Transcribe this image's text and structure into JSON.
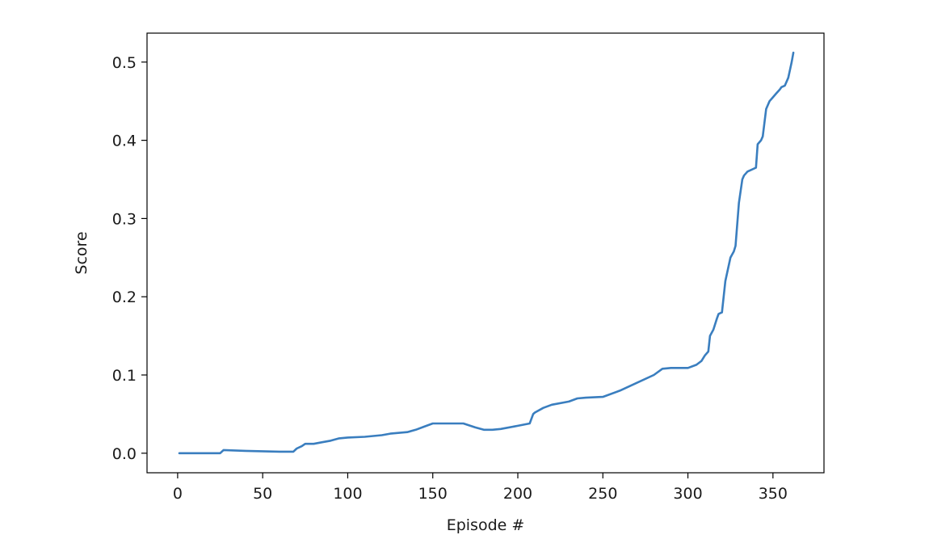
{
  "chart_data": {
    "type": "line",
    "title": "",
    "xlabel": "Episode #",
    "ylabel": "Score",
    "xlim": [
      -18,
      380
    ],
    "ylim": [
      -0.025,
      0.537
    ],
    "x_ticks": [
      0,
      50,
      100,
      150,
      200,
      250,
      300,
      350
    ],
    "x_tick_labels": [
      "0",
      "50",
      "100",
      "150",
      "200",
      "250",
      "300",
      "350"
    ],
    "y_ticks": [
      0.0,
      0.1,
      0.2,
      0.3,
      0.4,
      0.5
    ],
    "y_tick_labels": [
      "0.0",
      "0.1",
      "0.2",
      "0.3",
      "0.4",
      "0.5"
    ],
    "grid": false,
    "line_color": "#3a7ebf",
    "series": [
      {
        "x": [
          1,
          25,
          27,
          40,
          60,
          68,
          70,
          73,
          75,
          80,
          85,
          90,
          95,
          100,
          110,
          120,
          125,
          135,
          140,
          145,
          150,
          160,
          168,
          175,
          180,
          185,
          190,
          200,
          207,
          209,
          210,
          215,
          220,
          230,
          235,
          240,
          250,
          260,
          270,
          280,
          285,
          290,
          300,
          305,
          308,
          310,
          312,
          313,
          315,
          317,
          318,
          320,
          322,
          325,
          327,
          328,
          330,
          332,
          333,
          335,
          340,
          341,
          343,
          344,
          346,
          348,
          350,
          352,
          354,
          355,
          357,
          359,
          360,
          361,
          362
        ],
        "y": [
          0.0,
          0.0,
          0.004,
          0.003,
          0.002,
          0.002,
          0.006,
          0.009,
          0.012,
          0.012,
          0.014,
          0.016,
          0.019,
          0.02,
          0.021,
          0.023,
          0.025,
          0.027,
          0.03,
          0.034,
          0.038,
          0.038,
          0.038,
          0.033,
          0.03,
          0.03,
          0.031,
          0.035,
          0.038,
          0.05,
          0.052,
          0.058,
          0.062,
          0.066,
          0.07,
          0.071,
          0.072,
          0.08,
          0.09,
          0.1,
          0.108,
          0.109,
          0.109,
          0.113,
          0.118,
          0.125,
          0.13,
          0.15,
          0.158,
          0.172,
          0.178,
          0.18,
          0.22,
          0.25,
          0.258,
          0.265,
          0.32,
          0.35,
          0.355,
          0.36,
          0.365,
          0.395,
          0.4,
          0.405,
          0.44,
          0.45,
          0.455,
          0.46,
          0.465,
          0.468,
          0.47,
          0.48,
          0.49,
          0.5,
          0.512
        ]
      }
    ]
  }
}
